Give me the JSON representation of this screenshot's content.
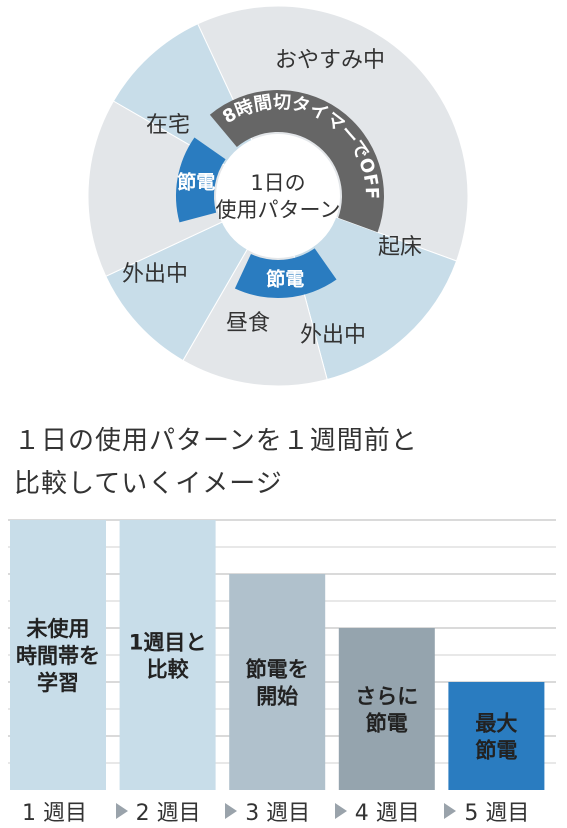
{
  "wheel": {
    "center_line1": "1日の",
    "center_line2": "使用パターン",
    "segments": [
      {
        "label": "おやすみ中",
        "color": "#e3e6e9"
      },
      {
        "label": "起床",
        "color": "#c8dde9"
      },
      {
        "label": "外出中",
        "color": "#e3e6e9"
      },
      {
        "label": "昼食",
        "color": "#c8dde9"
      },
      {
        "label": "外出中",
        "color": "#e3e6e9"
      },
      {
        "label": "在宅",
        "color": "#c8dde9"
      }
    ],
    "timer_label": "8時間切タイマーでOFF",
    "saving_label": "節電",
    "saving_color": "#2a7cc0",
    "timer_color": "#666666"
  },
  "caption": {
    "line1": "１日の使用パターンを１週間前と",
    "line2": "比較していくイメージ"
  },
  "chart_data": {
    "type": "bar",
    "categories": [
      "1 週目",
      "2 週目",
      "3 週目",
      "4 週目",
      "5 週目"
    ],
    "values": [
      5,
      5,
      4,
      3,
      2
    ],
    "bar_labels": [
      "未使用\n時間帯を\n学習",
      "1週目と\n比較",
      "節電を\n開始",
      "さらに\n節電",
      "最大\n節電"
    ],
    "colors": [
      "#c8dde9",
      "#c8dde9",
      "#b0c1cc",
      "#95a4ae",
      "#2a7cc0"
    ],
    "label_colors": [
      "#222222",
      "#222222",
      "#222222",
      "#222222",
      "#222222"
    ],
    "ylim": [
      0,
      5
    ],
    "grid": true
  }
}
